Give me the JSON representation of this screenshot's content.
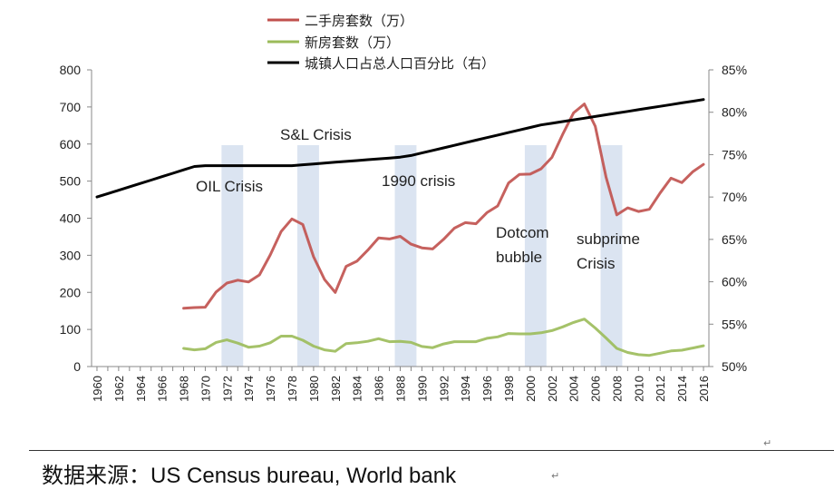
{
  "chart_data": {
    "type": "line",
    "x": [
      1960,
      1961,
      1962,
      1963,
      1964,
      1965,
      1966,
      1967,
      1968,
      1969,
      1970,
      1971,
      1972,
      1973,
      1974,
      1975,
      1976,
      1977,
      1978,
      1979,
      1980,
      1981,
      1982,
      1983,
      1984,
      1985,
      1986,
      1987,
      1988,
      1989,
      1990,
      1991,
      1992,
      1993,
      1994,
      1995,
      1996,
      1997,
      1998,
      1999,
      2000,
      2001,
      2002,
      2003,
      2004,
      2005,
      2006,
      2007,
      2008,
      2009,
      2010,
      2011,
      2012,
      2013,
      2014,
      2015,
      2016
    ],
    "x_tick_labels": [
      "1960",
      "1962",
      "1964",
      "1966",
      "1968",
      "1970",
      "1972",
      "1974",
      "1976",
      "1978",
      "1980",
      "1982",
      "1984",
      "1986",
      "1988",
      "1990",
      "1992",
      "1994",
      "1996",
      "1998",
      "2000",
      "2002",
      "2004",
      "2006",
      "2008",
      "2010",
      "2012",
      "2014",
      "2016"
    ],
    "y_left": {
      "ylim": [
        0,
        800
      ],
      "ticks": [
        "0",
        "100",
        "200",
        "300",
        "400",
        "500",
        "600",
        "700",
        "800"
      ]
    },
    "y_right": {
      "ylim": [
        50,
        85
      ],
      "ticks": [
        "50%",
        "55%",
        "60%",
        "65%",
        "70%",
        "75%",
        "80%",
        "85%"
      ]
    },
    "series": [
      {
        "name": "二手房套数（万）",
        "axis": "left",
        "color": "#c0504d",
        "values": [
          null,
          null,
          null,
          null,
          null,
          null,
          null,
          null,
          157,
          159,
          160,
          201,
          225,
          233,
          228,
          247,
          301,
          364,
          398,
          383,
          296,
          235,
          200,
          270,
          284,
          314,
          347,
          344,
          351,
          330,
          320,
          317,
          343,
          373,
          388,
          385,
          415,
          433,
          495,
          518,
          519,
          533,
          564,
          626,
          684,
          708,
          648,
          511,
          409,
          428,
          418,
          424,
          468,
          508,
          496,
          525,
          545
        ]
      },
      {
        "name": "新房套数（万）",
        "axis": "left",
        "color": "#9bbb59",
        "values": [
          null,
          null,
          null,
          null,
          null,
          null,
          null,
          null,
          49,
          45,
          48,
          65,
          72,
          63,
          52,
          55,
          64,
          82,
          82,
          71,
          55,
          45,
          41,
          62,
          64,
          68,
          75,
          67,
          68,
          65,
          54,
          51,
          61,
          67,
          67,
          67,
          76,
          80,
          89,
          88,
          88,
          91,
          97,
          107,
          119,
          128,
          104,
          77,
          49,
          38,
          32,
          30,
          36,
          42,
          44,
          50,
          56
        ]
      },
      {
        "name": "城镇人口占总人口百分比（右）",
        "axis": "right",
        "color": "#000000",
        "values": [
          70.0,
          70.4,
          70.8,
          71.2,
          71.6,
          72.0,
          72.4,
          72.8,
          73.2,
          73.6,
          73.7,
          73.7,
          73.7,
          73.7,
          73.7,
          73.7,
          73.7,
          73.7,
          73.7,
          73.8,
          73.9,
          74.0,
          74.1,
          74.2,
          74.3,
          74.4,
          74.5,
          74.6,
          74.7,
          74.9,
          75.2,
          75.5,
          75.8,
          76.1,
          76.4,
          76.7,
          77.0,
          77.3,
          77.6,
          77.9,
          78.2,
          78.5,
          78.7,
          78.9,
          79.1,
          79.3,
          79.5,
          79.7,
          79.9,
          80.1,
          80.3,
          80.5,
          80.7,
          80.9,
          81.1,
          81.3,
          81.5
        ]
      }
    ],
    "crisis_bands": [
      {
        "label": "OIL Crisis",
        "start": 1972,
        "end": 1973
      },
      {
        "label": "S&L Crisis",
        "start": 1979,
        "end": 1980
      },
      {
        "label": "1990 crisis",
        "start": 1988,
        "end": 1989
      },
      {
        "label": "Dotcom bubble",
        "start": 2000,
        "end": 2001
      },
      {
        "label": "subprime Crisis",
        "start": 2007,
        "end": 2008
      }
    ],
    "crisis_labels": [
      {
        "id": "oil",
        "lines": [
          "OIL Crisis"
        ]
      },
      {
        "id": "sl",
        "lines": [
          "S&L Crisis"
        ]
      },
      {
        "id": "c1990",
        "lines": [
          "1990 crisis"
        ]
      },
      {
        "id": "dotcom",
        "lines": [
          "Dotcom",
          "bubble"
        ]
      },
      {
        "id": "subprime",
        "lines": [
          "subprime",
          "Crisis"
        ]
      }
    ],
    "legend_position": "top-center",
    "grid": false
  },
  "source": {
    "label": "数据来源：",
    "text": "US Census bureau, World bank"
  }
}
